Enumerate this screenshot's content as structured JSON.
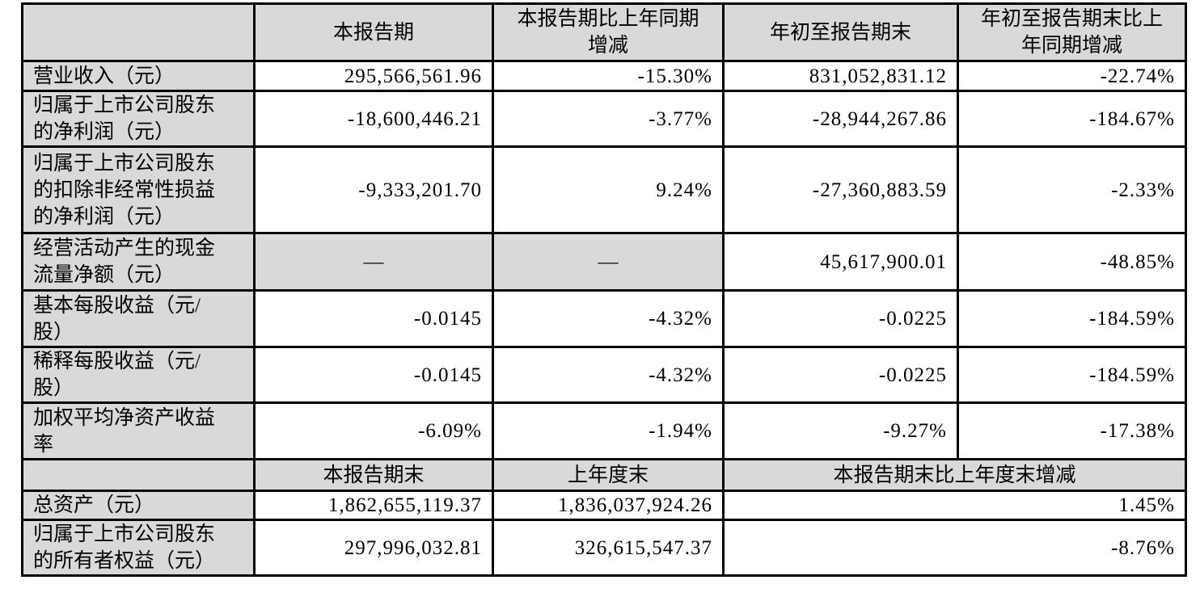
{
  "table": {
    "colors": {
      "shade": "#d9d9d9",
      "border": "#000000",
      "background": "#ffffff"
    },
    "header_row": {
      "metric": "",
      "current_period": "本报告期",
      "current_period_change": "本报告期比上年同期增减",
      "ytd": "年初至报告期末",
      "ytd_change": "年初至报告期末比上年同期增减"
    },
    "rows": [
      {
        "label": "营业收入（元）",
        "current": "295,566,561.96",
        "current_change": "-15.30%",
        "ytd": "831,052,831.12",
        "ytd_change": "-22.74%"
      },
      {
        "label": "归属于上市公司股东的净利润（元）",
        "current": "-18,600,446.21",
        "current_change": "-3.77%",
        "ytd": "-28,944,267.86",
        "ytd_change": "-184.67%"
      },
      {
        "label": "归属于上市公司股东的扣除非经常性损益的净利润（元）",
        "current": "-9,333,201.70",
        "current_change": "9.24%",
        "ytd": "-27,360,883.59",
        "ytd_change": "-2.33%"
      },
      {
        "label": "经营活动产生的现金流量净额（元）",
        "current": "—",
        "current_change": "—",
        "ytd": "45,617,900.01",
        "ytd_change": "-48.85%"
      },
      {
        "label": "基本每股收益（元/股）",
        "current": "-0.0145",
        "current_change": "-4.32%",
        "ytd": "-0.0225",
        "ytd_change": "-184.59%"
      },
      {
        "label": "稀释每股收益（元/股）",
        "current": "-0.0145",
        "current_change": "-4.32%",
        "ytd": "-0.0225",
        "ytd_change": "-184.59%"
      },
      {
        "label": "加权平均净资产收益率",
        "current": "-6.09%",
        "current_change": "-1.94%",
        "ytd": "-9.27%",
        "ytd_change": "-17.38%"
      }
    ],
    "section2_header": {
      "metric": "",
      "period_end": "本报告期末",
      "prev_year_end": "上年度末",
      "change_span": "本报告期末比上年度末增减"
    },
    "section2_rows": [
      {
        "label": "总资产（元）",
        "period_end": "1,862,655,119.37",
        "prev_year_end": "1,836,037,924.26",
        "change": "1.45%"
      },
      {
        "label": "归属于上市公司股东的所有者权益（元）",
        "period_end": "297,996,032.81",
        "prev_year_end": "326,615,547.37",
        "change": "-8.76%"
      }
    ]
  }
}
